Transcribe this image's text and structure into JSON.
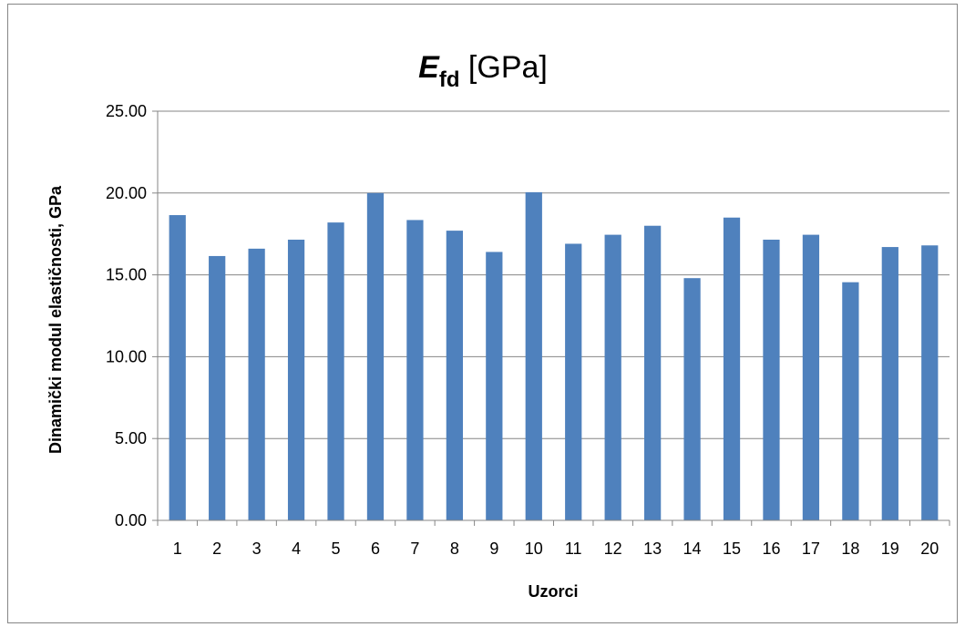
{
  "chart_data": {
    "type": "bar",
    "title": {
      "symbol": "E",
      "subscript": "fd",
      "unit": " [GPa]"
    },
    "xlabel": "Uzorci",
    "ylabel": "Dinamički modul elastičnosti, GPa",
    "categories": [
      "1",
      "2",
      "3",
      "4",
      "5",
      "6",
      "7",
      "8",
      "9",
      "10",
      "11",
      "12",
      "13",
      "14",
      "15",
      "16",
      "17",
      "18",
      "19",
      "20"
    ],
    "values": [
      18.65,
      16.15,
      16.6,
      17.15,
      18.2,
      20.0,
      18.35,
      17.7,
      16.4,
      20.05,
      16.9,
      17.45,
      18.0,
      14.8,
      18.5,
      17.15,
      17.45,
      14.55,
      16.7,
      16.8
    ],
    "ylim": [
      0,
      25
    ],
    "yticks": [
      "0.00",
      "5.00",
      "10.00",
      "15.00",
      "20.00",
      "25.00"
    ],
    "ytick_values": [
      0,
      5,
      10,
      15,
      20,
      25
    ],
    "grid": true,
    "legend": "none",
    "bar_color": "#4F81BD",
    "grid_color": "#868686"
  }
}
